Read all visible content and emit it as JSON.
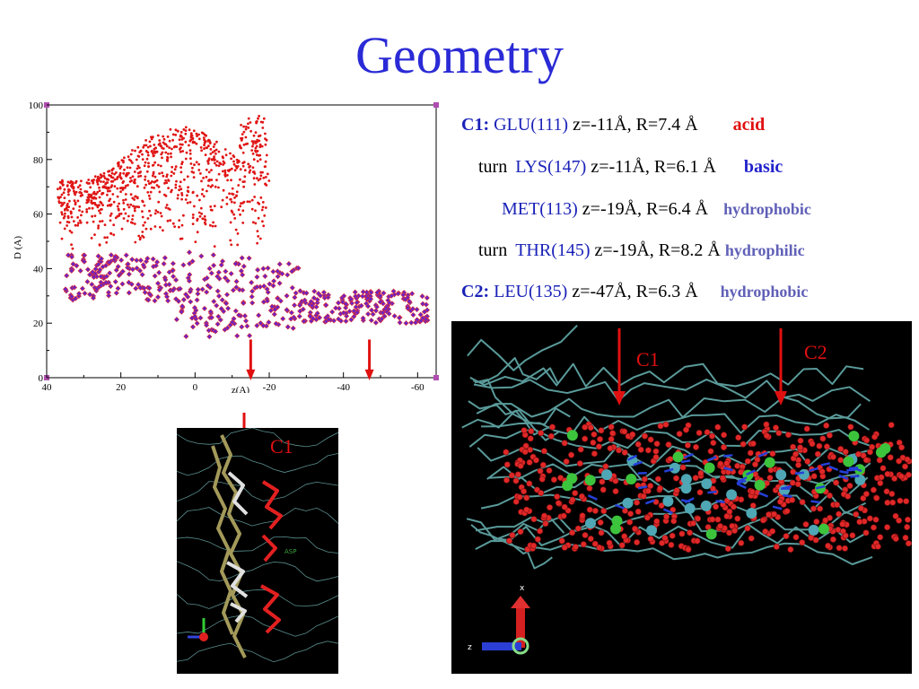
{
  "slide": {
    "title": "Geometry"
  },
  "chart_data": {
    "type": "scatter",
    "title": "",
    "xlabel": "z(A)",
    "ylabel": "D (A)",
    "xlim": [
      40,
      -65
    ],
    "ylim": [
      0,
      100
    ],
    "x_ticks": [
      "40",
      "20",
      "0",
      "-20",
      "-40",
      "-60"
    ],
    "y_ticks": [
      "0",
      "20",
      "40",
      "60",
      "80",
      "100"
    ],
    "x_reversed": true,
    "grid": false,
    "series": [
      {
        "name": "",
        "color": "#e01515",
        "marker": "dot",
        "x_range": [
          37,
          -20
        ],
        "y_range": [
          47,
          100
        ]
      },
      {
        "name": "",
        "color": "#6b22c8",
        "marker": "diamond",
        "x_range": [
          35,
          -63
        ],
        "y_range": [
          14,
          46
        ]
      }
    ],
    "annotations": [
      {
        "type": "arrow",
        "x": -15,
        "color": "#e01010"
      },
      {
        "type": "arrow",
        "x": -47,
        "color": "#e01010"
      }
    ]
  },
  "residues": {
    "row1": {
      "label": "C1:",
      "residue": "GLU(111)",
      "coords": "z=-11Å, R=7.4 Å",
      "tag": "acid"
    },
    "row2": {
      "prefix": "turn",
      "residue": "LYS(147)",
      "coords": "z=-11Å, R=6.1 Å",
      "tag": "basic"
    },
    "row3": {
      "residue": "MET(113)",
      "coords": "z=-19Å, R=6.4 Å",
      "tag": "hydrophobic"
    },
    "row4": {
      "prefix": "turn",
      "residue": "THR(145)",
      "coords": "z=-19Å, R=8.2 Å",
      "tag": "hydrophilic"
    },
    "row5": {
      "label": "C2:",
      "residue": "LEU(135)",
      "coords": "z=-47Å, R=6.3 Å",
      "tag": "hydrophobic"
    }
  },
  "renders": {
    "small": {
      "label": "C1"
    },
    "large": {
      "label_c1": "C1",
      "label_c2": "C2"
    }
  },
  "colors": {
    "title": "#2a2ad6",
    "accent_red": "#e01010",
    "residue_blue": "#1a22b8"
  }
}
